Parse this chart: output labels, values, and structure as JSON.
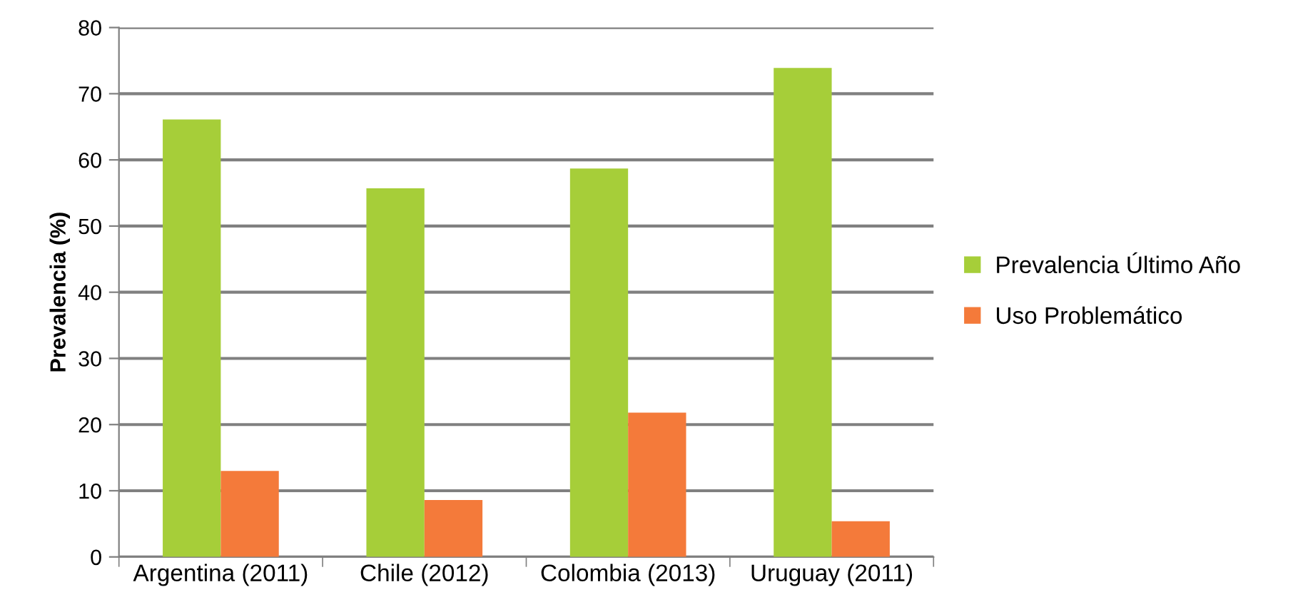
{
  "chart_data": {
    "type": "bar",
    "ylabel": "Prevalencia (%)",
    "categories": [
      "Argentina (2011)",
      "Chile (2012)",
      "Colombia (2013)",
      "Uruguay (2011)"
    ],
    "series": [
      {
        "name": "Prevalencia Último Año",
        "color": "#a6ce39",
        "values": [
          66.1,
          55.7,
          58.7,
          73.9
        ]
      },
      {
        "name": "Uso Problemático",
        "color": "#f47a3a",
        "values": [
          13.0,
          8.6,
          21.8,
          5.4
        ]
      }
    ],
    "ylim": [
      0,
      80
    ],
    "yticks": [
      0,
      10,
      20,
      30,
      40,
      50,
      60,
      70,
      80
    ],
    "grid": "y",
    "legend": "right"
  }
}
